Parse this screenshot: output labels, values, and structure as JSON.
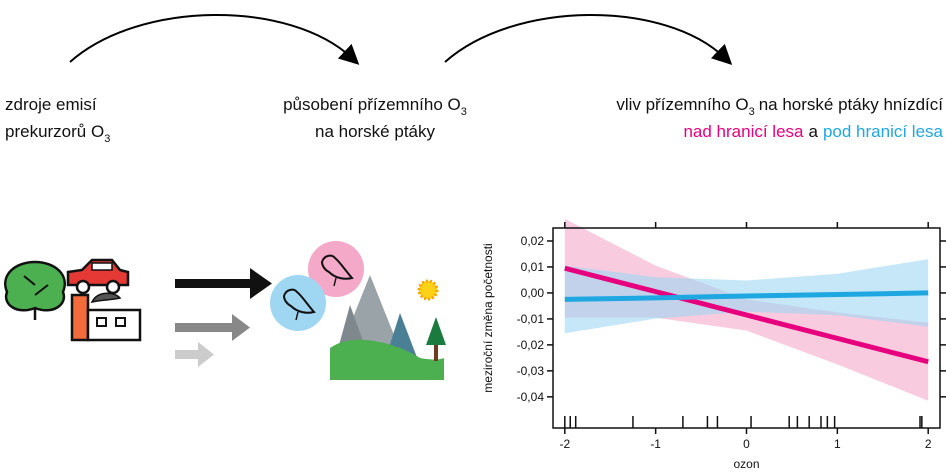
{
  "labels": {
    "sources": {
      "line1": "zdroje emisí",
      "line2": "prekurzorů O",
      "sub": "3"
    },
    "effect": {
      "line1": "působení přízemního O",
      "sub": "3",
      "line2": "na horské ptáky"
    },
    "impact": {
      "line1a": "vliv přízemního O",
      "sub": "3",
      "line1b": "na horské ptáky hnízdící",
      "above": "nad hranicí lesa",
      "and": "a",
      "below": "pod hranicí lesa"
    }
  },
  "chart_data": {
    "type": "line",
    "xlabel": "ozon",
    "ylabel": "meziroční změna početnosti",
    "x": [
      -2,
      -1,
      0,
      1,
      2
    ],
    "series": [
      {
        "name": "nad hranicí lesa",
        "color": "#e6007e",
        "band_color": "#f4a9c8",
        "values": [
          0.0095,
          0.0005,
          -0.0085,
          -0.0175,
          -0.0265
        ],
        "upper": [
          0.0285,
          0.0105,
          -0.0025,
          -0.0075,
          -0.0115
        ],
        "lower": [
          -0.0095,
          -0.0095,
          -0.0145,
          -0.0275,
          -0.0415
        ]
      },
      {
        "name": "pod hranicí lesa",
        "color": "#1ea7e1",
        "band_color": "#9fd7f3",
        "values": [
          -0.0025,
          -0.0019,
          -0.0012,
          -0.0006,
          0.0
        ],
        "upper": [
          0.0105,
          0.0061,
          0.0048,
          0.0074,
          0.013
        ],
        "lower": [
          -0.0155,
          -0.0099,
          -0.0072,
          -0.0086,
          -0.013
        ]
      }
    ],
    "rug": [
      -2,
      -1.94,
      -1.88,
      -1.25,
      -0.7,
      -0.43,
      -0.32,
      0.05,
      0.47,
      0.56,
      0.69,
      0.82,
      0.89,
      0.97,
      1.91,
      1.93
    ],
    "xlim": [
      -2.13,
      2.13
    ],
    "ylim": [
      -0.052,
      0.025
    ],
    "xticks": [
      -2,
      -1,
      0,
      1,
      2
    ],
    "yticks": [
      {
        "value": 0.02,
        "label": "0,02"
      },
      {
        "value": 0.01,
        "label": "0,01"
      },
      {
        "value": 0,
        "label": "0,00"
      },
      {
        "value": -0.01,
        "label": "-0,01"
      },
      {
        "value": -0.02,
        "label": "-0,02"
      },
      {
        "value": -0.03,
        "label": "-0,03"
      },
      {
        "value": -0.04,
        "label": "-0,04"
      }
    ]
  }
}
